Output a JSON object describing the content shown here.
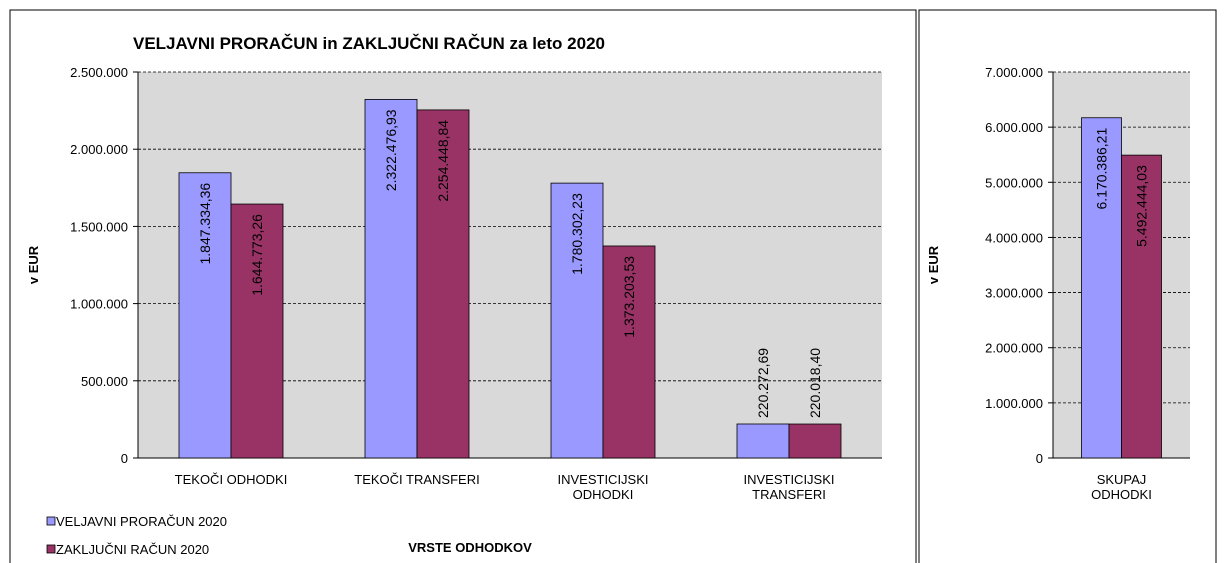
{
  "chart_data": [
    {
      "type": "bar",
      "title": "VELJAVNI PRORAČUN in ZAKLJUČNI RAČUN za leto 2020",
      "y_label": "v EUR",
      "x_label": "VRSTE ODHODKOV",
      "categories": [
        "TEKOČI ODHODKI",
        "TEKOČI TRANSFERI",
        "INVESTICIJSKI\nODHODKI",
        "INVESTICIJSKI\nTRANSFERI"
      ],
      "series": [
        {
          "name": "VELJAVNI PRORAČUN 2020",
          "color": "#9999ff",
          "values": [
            1847334.36,
            2322476.93,
            1780302.23,
            220272.69
          ],
          "value_labels": [
            "1.847.334,36",
            "2.322.476,93",
            "1.780.302,23",
            "220.272,69"
          ]
        },
        {
          "name": "ZAKLJUČNI RAČUN 2020",
          "color": "#993366",
          "values": [
            1644773.26,
            2254448.84,
            1373203.53,
            220018.4
          ],
          "value_labels": [
            "1.644.773,26",
            "2.254.448,84",
            "1.373.203,53",
            "220.018,40"
          ]
        }
      ],
      "ylim": [
        0,
        2500000
      ],
      "yticks": [
        0,
        {
          "value": 500000,
          "label": "500.000"
        },
        {
          "value": 1000000,
          "label": "1.000.000"
        },
        {
          "value": 1500000,
          "label": "1.500.000"
        },
        {
          "value": 2000000,
          "label": "2.000.000"
        },
        {
          "value": 2500000,
          "label": "2.500.000"
        }
      ],
      "grid": true,
      "legend": "bottom-left"
    },
    {
      "type": "bar",
      "y_label": "v EUR",
      "categories": [
        "SKUPAJ\nODHODKI"
      ],
      "series": [
        {
          "color": "#9999ff",
          "values": [
            6170386.21
          ],
          "value_labels": [
            "6.170.386,21"
          ]
        },
        {
          "color": "#993366",
          "values": [
            5492444.03
          ],
          "value_labels": [
            "5.492.444,03"
          ]
        }
      ],
      "ylim": [
        0,
        7000000
      ],
      "yticks": [
        0,
        {
          "value": 1000000,
          "label": "1.000.000"
        },
        {
          "value": 2000000,
          "label": "2.000.000"
        },
        {
          "value": 3000000,
          "label": "3.000.000"
        },
        {
          "value": 4000000,
          "label": "4.000.000"
        },
        {
          "value": 5000000,
          "label": "5.000.000"
        },
        {
          "value": 6000000,
          "label": "6.000.000"
        },
        {
          "value": 7000000,
          "label": "7.000.000"
        }
      ],
      "grid": true
    }
  ]
}
